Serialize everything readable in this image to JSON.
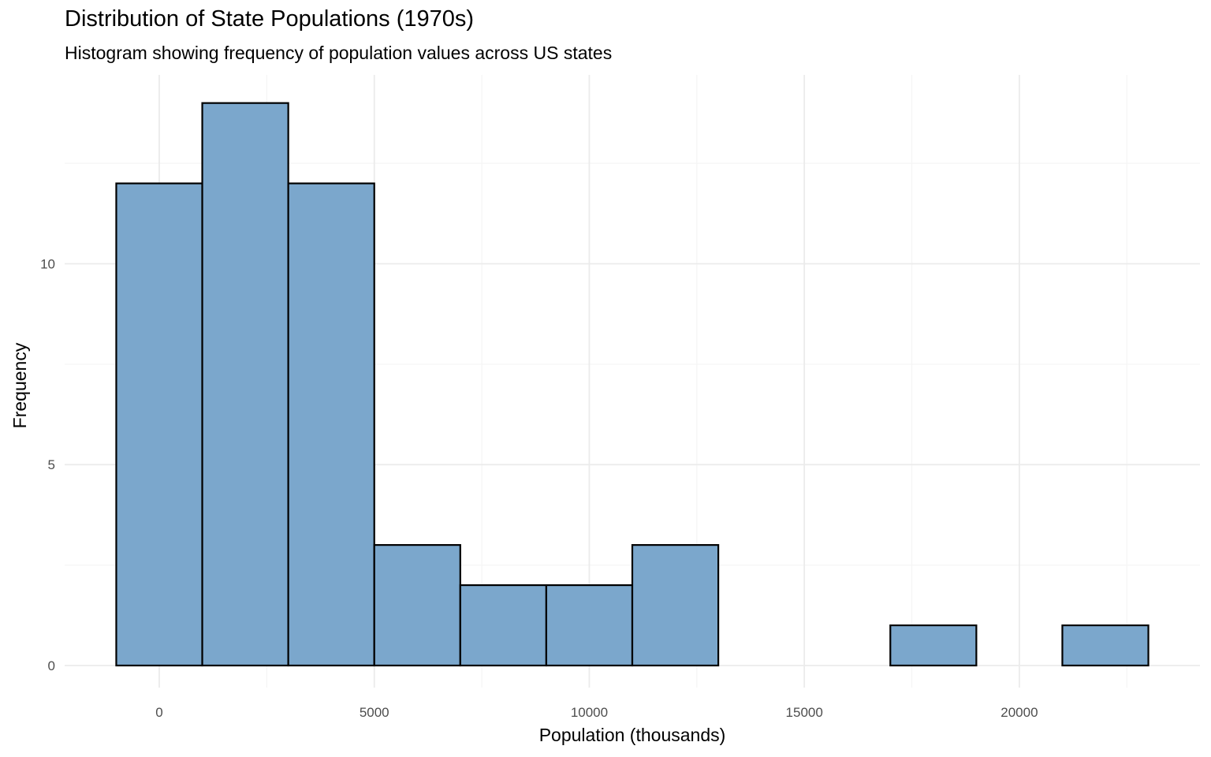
{
  "chart_data": {
    "type": "bar",
    "variant": "histogram",
    "title": "Distribution of State Populations (1970s)",
    "subtitle": "Histogram showing frequency of population values across US states",
    "xlabel": "Population (thousands)",
    "ylabel": "Frequency",
    "bin_width": 2000,
    "bins": [
      {
        "x0": -1000,
        "x1": 1000,
        "count": 12
      },
      {
        "x0": 1000,
        "x1": 3000,
        "count": 14
      },
      {
        "x0": 3000,
        "x1": 5000,
        "count": 12
      },
      {
        "x0": 5000,
        "x1": 7000,
        "count": 3
      },
      {
        "x0": 7000,
        "x1": 9000,
        "count": 2
      },
      {
        "x0": 9000,
        "x1": 11000,
        "count": 2
      },
      {
        "x0": 11000,
        "x1": 13000,
        "count": 3
      },
      {
        "x0": 13000,
        "x1": 15000,
        "count": 0
      },
      {
        "x0": 15000,
        "x1": 17000,
        "count": 0
      },
      {
        "x0": 17000,
        "x1": 19000,
        "count": 1
      },
      {
        "x0": 19000,
        "x1": 21000,
        "count": 0
      },
      {
        "x0": 21000,
        "x1": 23000,
        "count": 1
      }
    ],
    "xlim": [
      -2200,
      24200
    ],
    "ylim": [
      -0.55,
      14.7
    ],
    "x_ticks": [
      0,
      5000,
      10000,
      15000,
      20000
    ],
    "x_tick_labels": [
      "0",
      "5000",
      "10000",
      "15000",
      "20000"
    ],
    "y_ticks": [
      0,
      5,
      10
    ],
    "y_tick_labels": [
      "0",
      "5",
      "10"
    ],
    "grid": true,
    "legend": "none",
    "colors": {
      "bar_fill": "#7ba7cc",
      "bar_outline": "#000000",
      "grid_major": "#ebebeb",
      "grid_minor": "#f5f5f5"
    }
  }
}
